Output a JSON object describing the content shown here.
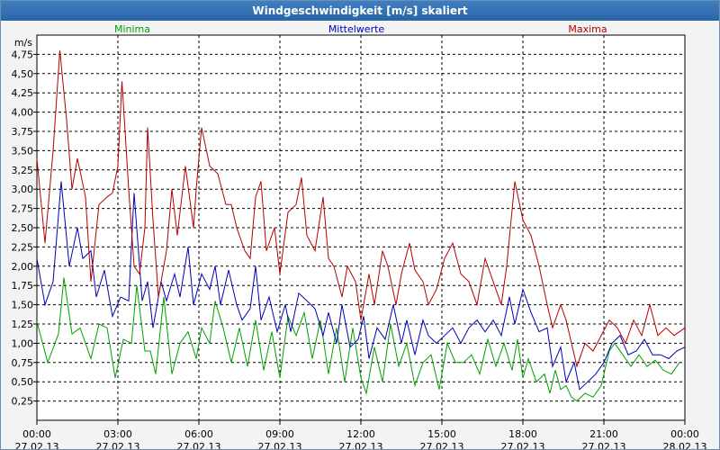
{
  "window": {
    "title": "Windgeschwindigkeit [m/s] skaliert"
  },
  "chart_data": {
    "type": "line",
    "title": "Windgeschwindigkeit [m/s] skaliert",
    "ylabel": "m/s",
    "xlabel": "",
    "ylim": [
      0,
      5
    ],
    "xlim_hours": [
      0,
      24
    ],
    "grid": true,
    "legend_position": "top",
    "y_ticks": [
      "0,25",
      "0,50",
      "0,75",
      "1,00",
      "1,25",
      "1,50",
      "1,75",
      "2,00",
      "2,25",
      "2,50",
      "2,75",
      "3,00",
      "3,25",
      "3,50",
      "3,75",
      "4,00",
      "4,25",
      "4,50",
      "4,75"
    ],
    "x_ticks": [
      {
        "time": "00:00",
        "date": "27.02.13"
      },
      {
        "time": "03:00",
        "date": "27.02.13"
      },
      {
        "time": "06:00",
        "date": "27.02.13"
      },
      {
        "time": "09:00",
        "date": "27.02.13"
      },
      {
        "time": "12:00",
        "date": "27.02.13"
      },
      {
        "time": "15:00",
        "date": "27.02.13"
      },
      {
        "time": "18:00",
        "date": "27.02.13"
      },
      {
        "time": "21:00",
        "date": "27.02.13"
      },
      {
        "time": "00:00",
        "date": "28.02.13"
      }
    ],
    "series": [
      {
        "name": "Minima",
        "color": "#00a000",
        "points": [
          [
            0,
            1.28
          ],
          [
            0.4,
            0.75
          ],
          [
            0.8,
            1.12
          ],
          [
            1.0,
            1.85
          ],
          [
            1.3,
            1.12
          ],
          [
            1.6,
            1.2
          ],
          [
            2.0,
            0.8
          ],
          [
            2.3,
            1.25
          ],
          [
            2.6,
            1.2
          ],
          [
            2.9,
            0.55
          ],
          [
            3.2,
            1.05
          ],
          [
            3.5,
            1.0
          ],
          [
            3.7,
            1.75
          ],
          [
            4.0,
            0.9
          ],
          [
            4.2,
            0.9
          ],
          [
            4.4,
            0.6
          ],
          [
            4.7,
            1.6
          ],
          [
            5.0,
            0.6
          ],
          [
            5.3,
            1.0
          ],
          [
            5.6,
            1.15
          ],
          [
            5.9,
            0.8
          ],
          [
            6.1,
            1.2
          ],
          [
            6.4,
            1.0
          ],
          [
            6.6,
            1.55
          ],
          [
            6.9,
            1.2
          ],
          [
            7.2,
            0.75
          ],
          [
            7.5,
            1.2
          ],
          [
            7.8,
            0.7
          ],
          [
            8.1,
            1.3
          ],
          [
            8.4,
            0.65
          ],
          [
            8.7,
            1.15
          ],
          [
            9.0,
            0.55
          ],
          [
            9.3,
            1.35
          ],
          [
            9.6,
            1.1
          ],
          [
            9.9,
            1.4
          ],
          [
            10.2,
            0.8
          ],
          [
            10.5,
            1.3
          ],
          [
            10.8,
            0.6
          ],
          [
            11.1,
            1.2
          ],
          [
            11.4,
            0.5
          ],
          [
            11.7,
            1.2
          ],
          [
            12.0,
            0.55
          ],
          [
            12.2,
            0.35
          ],
          [
            12.5,
            0.95
          ],
          [
            12.8,
            0.5
          ],
          [
            13.1,
            1.25
          ],
          [
            13.4,
            0.7
          ],
          [
            13.7,
            1.0
          ],
          [
            14.0,
            0.45
          ],
          [
            14.3,
            0.75
          ],
          [
            14.6,
            0.85
          ],
          [
            14.9,
            0.4
          ],
          [
            15.2,
            1.0
          ],
          [
            15.5,
            0.75
          ],
          [
            15.8,
            0.75
          ],
          [
            16.1,
            0.85
          ],
          [
            16.4,
            0.6
          ],
          [
            16.7,
            1.05
          ],
          [
            17.0,
            0.7
          ],
          [
            17.3,
            1.0
          ],
          [
            17.6,
            0.65
          ],
          [
            17.8,
            1.05
          ],
          [
            18.0,
            0.55
          ],
          [
            18.2,
            0.8
          ],
          [
            18.5,
            0.5
          ],
          [
            18.8,
            0.6
          ],
          [
            19.0,
            0.35
          ],
          [
            19.2,
            0.65
          ],
          [
            19.4,
            0.4
          ],
          [
            19.6,
            0.45
          ],
          [
            19.8,
            0.3
          ],
          [
            20.0,
            0.25
          ],
          [
            20.3,
            0.35
          ],
          [
            20.6,
            0.3
          ],
          [
            20.9,
            0.45
          ],
          [
            21.2,
            0.9
          ],
          [
            21.4,
            1.0
          ],
          [
            21.7,
            0.85
          ],
          [
            22.0,
            0.7
          ],
          [
            22.3,
            0.85
          ],
          [
            22.6,
            0.7
          ],
          [
            22.9,
            0.78
          ],
          [
            23.2,
            0.65
          ],
          [
            23.5,
            0.6
          ],
          [
            23.8,
            0.75
          ]
        ]
      },
      {
        "name": "Mittelwerte",
        "color": "#0000b4",
        "points": [
          [
            0,
            2.1
          ],
          [
            0.3,
            1.5
          ],
          [
            0.6,
            1.8
          ],
          [
            0.9,
            3.1
          ],
          [
            1.2,
            2.0
          ],
          [
            1.5,
            2.5
          ],
          [
            1.7,
            2.1
          ],
          [
            2.0,
            2.2
          ],
          [
            2.2,
            1.6
          ],
          [
            2.5,
            1.95
          ],
          [
            2.8,
            1.35
          ],
          [
            3.1,
            1.6
          ],
          [
            3.4,
            1.55
          ],
          [
            3.6,
            2.95
          ],
          [
            3.9,
            1.55
          ],
          [
            4.1,
            1.8
          ],
          [
            4.3,
            1.2
          ],
          [
            4.6,
            1.8
          ],
          [
            4.8,
            1.55
          ],
          [
            5.1,
            1.9
          ],
          [
            5.3,
            1.6
          ],
          [
            5.6,
            2.25
          ],
          [
            5.8,
            1.5
          ],
          [
            6.1,
            1.9
          ],
          [
            6.4,
            1.7
          ],
          [
            6.6,
            2.0
          ],
          [
            6.8,
            1.5
          ],
          [
            7.1,
            1.95
          ],
          [
            7.4,
            1.5
          ],
          [
            7.6,
            1.3
          ],
          [
            7.9,
            1.45
          ],
          [
            8.1,
            2.0
          ],
          [
            8.3,
            1.3
          ],
          [
            8.6,
            1.6
          ],
          [
            8.9,
            1.15
          ],
          [
            9.2,
            1.5
          ],
          [
            9.4,
            1.15
          ],
          [
            9.7,
            1.65
          ],
          [
            10.0,
            1.55
          ],
          [
            10.3,
            1.45
          ],
          [
            10.6,
            1.1
          ],
          [
            10.8,
            1.4
          ],
          [
            11.1,
            1.0
          ],
          [
            11.3,
            1.5
          ],
          [
            11.6,
            0.95
          ],
          [
            11.9,
            1.05
          ],
          [
            12.1,
            1.35
          ],
          [
            12.3,
            0.8
          ],
          [
            12.6,
            1.2
          ],
          [
            12.9,
            1.05
          ],
          [
            13.2,
            1.5
          ],
          [
            13.5,
            1.0
          ],
          [
            13.7,
            1.3
          ],
          [
            14.0,
            0.85
          ],
          [
            14.3,
            1.3
          ],
          [
            14.5,
            1.1
          ],
          [
            14.8,
            1.0
          ],
          [
            15.1,
            1.1
          ],
          [
            15.4,
            1.2
          ],
          [
            15.7,
            1.0
          ],
          [
            16.0,
            1.2
          ],
          [
            16.3,
            1.3
          ],
          [
            16.6,
            1.15
          ],
          [
            16.9,
            1.3
          ],
          [
            17.2,
            1.1
          ],
          [
            17.5,
            1.6
          ],
          [
            17.7,
            1.25
          ],
          [
            18.0,
            1.7
          ],
          [
            18.3,
            1.4
          ],
          [
            18.6,
            1.15
          ],
          [
            18.9,
            1.2
          ],
          [
            19.1,
            0.7
          ],
          [
            19.4,
            0.95
          ],
          [
            19.6,
            0.5
          ],
          [
            19.9,
            0.75
          ],
          [
            20.1,
            0.4
          ],
          [
            20.4,
            0.5
          ],
          [
            20.7,
            0.6
          ],
          [
            21.0,
            0.75
          ],
          [
            21.3,
            1.0
          ],
          [
            21.6,
            1.1
          ],
          [
            21.9,
            0.85
          ],
          [
            22.2,
            0.9
          ],
          [
            22.5,
            1.05
          ],
          [
            22.8,
            0.85
          ],
          [
            23.1,
            0.85
          ],
          [
            23.4,
            0.8
          ],
          [
            23.7,
            0.9
          ],
          [
            24.0,
            0.95
          ]
        ]
      },
      {
        "name": "Maxima",
        "color": "#b40000",
        "points": [
          [
            0,
            3.4
          ],
          [
            0.3,
            2.3
          ],
          [
            0.6,
            3.5
          ],
          [
            0.85,
            4.8
          ],
          [
            1.1,
            3.9
          ],
          [
            1.3,
            3.0
          ],
          [
            1.5,
            3.4
          ],
          [
            1.8,
            2.9
          ],
          [
            2.0,
            1.8
          ],
          [
            2.3,
            2.8
          ],
          [
            2.6,
            2.9
          ],
          [
            2.8,
            2.95
          ],
          [
            3.0,
            3.3
          ],
          [
            3.15,
            4.4
          ],
          [
            3.4,
            3.0
          ],
          [
            3.6,
            2.0
          ],
          [
            3.8,
            1.9
          ],
          [
            4.0,
            2.5
          ],
          [
            4.1,
            3.8
          ],
          [
            4.3,
            2.6
          ],
          [
            4.5,
            1.6
          ],
          [
            4.8,
            2.2
          ],
          [
            5.0,
            3.0
          ],
          [
            5.2,
            2.4
          ],
          [
            5.5,
            3.3
          ],
          [
            5.8,
            2.5
          ],
          [
            5.9,
            3.0
          ],
          [
            6.1,
            3.8
          ],
          [
            6.4,
            3.3
          ],
          [
            6.7,
            3.2
          ],
          [
            7.0,
            2.8
          ],
          [
            7.2,
            2.8
          ],
          [
            7.4,
            2.5
          ],
          [
            7.7,
            2.2
          ],
          [
            7.9,
            2.1
          ],
          [
            8.1,
            2.9
          ],
          [
            8.3,
            3.1
          ],
          [
            8.5,
            2.2
          ],
          [
            8.8,
            2.5
          ],
          [
            9.0,
            1.9
          ],
          [
            9.3,
            2.7
          ],
          [
            9.6,
            2.8
          ],
          [
            9.8,
            3.15
          ],
          [
            10.0,
            2.4
          ],
          [
            10.3,
            2.2
          ],
          [
            10.6,
            2.9
          ],
          [
            10.8,
            2.1
          ],
          [
            11.0,
            2.0
          ],
          [
            11.3,
            1.6
          ],
          [
            11.5,
            2.0
          ],
          [
            11.8,
            1.8
          ],
          [
            12.0,
            1.3
          ],
          [
            12.3,
            1.9
          ],
          [
            12.5,
            1.5
          ],
          [
            12.8,
            2.2
          ],
          [
            13.0,
            2.0
          ],
          [
            13.3,
            1.5
          ],
          [
            13.5,
            1.9
          ],
          [
            13.8,
            2.3
          ],
          [
            14.0,
            1.95
          ],
          [
            14.3,
            1.8
          ],
          [
            14.5,
            1.5
          ],
          [
            14.8,
            1.7
          ],
          [
            15.1,
            2.1
          ],
          [
            15.4,
            2.3
          ],
          [
            15.7,
            1.9
          ],
          [
            16.0,
            1.8
          ],
          [
            16.3,
            1.5
          ],
          [
            16.6,
            2.1
          ],
          [
            16.9,
            1.8
          ],
          [
            17.2,
            1.5
          ],
          [
            17.4,
            2.0
          ],
          [
            17.7,
            3.1
          ],
          [
            18.0,
            2.6
          ],
          [
            18.3,
            2.4
          ],
          [
            18.6,
            2.0
          ],
          [
            18.9,
            1.5
          ],
          [
            19.1,
            1.2
          ],
          [
            19.4,
            1.5
          ],
          [
            19.6,
            1.3
          ],
          [
            19.8,
            1.0
          ],
          [
            20.0,
            0.7
          ],
          [
            20.3,
            1.0
          ],
          [
            20.6,
            0.9
          ],
          [
            20.9,
            1.1
          ],
          [
            21.2,
            1.3
          ],
          [
            21.5,
            1.2
          ],
          [
            21.8,
            1.0
          ],
          [
            22.1,
            1.3
          ],
          [
            22.4,
            1.1
          ],
          [
            22.7,
            1.5
          ],
          [
            23.0,
            1.1
          ],
          [
            23.3,
            1.2
          ],
          [
            23.6,
            1.1
          ],
          [
            24.0,
            1.2
          ]
        ]
      }
    ]
  }
}
